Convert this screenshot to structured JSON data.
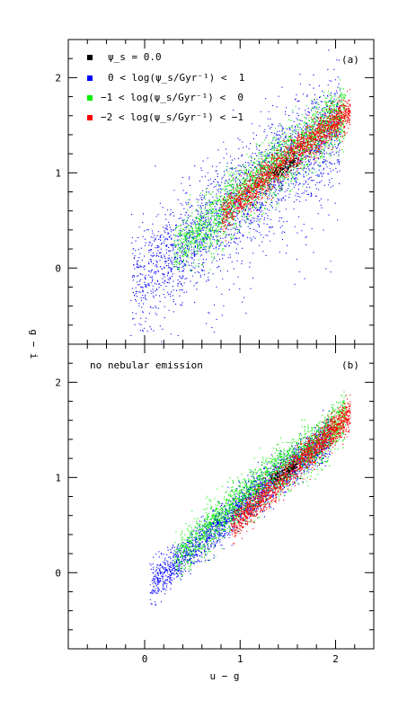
{
  "chart_data": {
    "type": "scatter",
    "xlabel": "u − g",
    "ylabel": "g − i",
    "xlim": [
      -0.8,
      2.4
    ],
    "x_ticks": [
      0,
      1,
      2
    ],
    "y_ticks": [
      0,
      1,
      2
    ],
    "panels": [
      {
        "id": "a",
        "label": "(a)",
        "annotation": "",
        "ylim": [
          -0.8,
          2.4
        ],
        "legend": [
          {
            "symbol_color": "#000000",
            "text": "ψ_s = 0.0"
          },
          {
            "symbol_color": "#0000ff",
            "text": "0 < log(ψ_s/Gyr⁻¹) <  1"
          },
          {
            "symbol_color": "#00ee00",
            "text": "−1 < log(ψ_s/Gyr⁻¹) <  0"
          },
          {
            "symbol_color": "#ff0000",
            "text": "−2 < log(ψ_s/Gyr⁻¹) < −1"
          }
        ],
        "series": [
          {
            "color": "#0000ff",
            "center": [
              [
                -0.1,
                -0.1
              ],
              [
                0.5,
                0.35
              ],
              [
                1.0,
                0.75
              ],
              [
                1.5,
                1.15
              ],
              [
                2.0,
                1.5
              ]
            ],
            "spread": 0.26,
            "x_range": [
              -0.15,
              2.05
            ],
            "count": 2600,
            "tail": true
          },
          {
            "color": "#00ee00",
            "center": [
              [
                0.2,
                0.1
              ],
              [
                0.7,
                0.5
              ],
              [
                1.2,
                0.95
              ],
              [
                1.7,
                1.35
              ],
              [
                2.1,
                1.65
              ]
            ],
            "spread": 0.15,
            "x_range": [
              0.3,
              2.1
            ],
            "count": 2400
          },
          {
            "color": "#ff0000",
            "center": [
              [
                0.7,
                0.45
              ],
              [
                1.2,
                0.9
              ],
              [
                1.6,
                1.25
              ],
              [
                2.1,
                1.62
              ]
            ],
            "spread": 0.09,
            "x_range": [
              0.8,
              2.15
            ],
            "count": 1800
          },
          {
            "color": "#000000",
            "center": [
              [
                1.35,
                1.0
              ],
              [
                1.6,
                1.15
              ]
            ],
            "spread": 0.03,
            "x_range": [
              1.3,
              1.6
            ],
            "count": 60
          }
        ]
      },
      {
        "id": "b",
        "label": "(b)",
        "annotation": "no nebular emission",
        "ylim": [
          -0.8,
          2.4
        ],
        "legend": [],
        "series": [
          {
            "color": "#0000ff",
            "center": [
              [
                0.0,
                -0.15
              ],
              [
                0.5,
                0.25
              ],
              [
                1.0,
                0.7
              ],
              [
                1.5,
                1.1
              ],
              [
                2.0,
                1.5
              ]
            ],
            "spread": 0.1,
            "x_range": [
              0.05,
              1.95
            ],
            "count": 2400
          },
          {
            "color": "#00ee00",
            "center": [
              [
                0.3,
                0.15
              ],
              [
                0.8,
                0.6
              ],
              [
                1.3,
                1.0
              ],
              [
                1.8,
                1.35
              ],
              [
                2.1,
                1.65
              ]
            ],
            "spread": 0.12,
            "x_range": [
              0.3,
              2.1
            ],
            "count": 2300
          },
          {
            "color": "#ff0000",
            "center": [
              [
                0.8,
                0.4
              ],
              [
                1.3,
                0.85
              ],
              [
                1.7,
                1.25
              ],
              [
                2.1,
                1.62
              ]
            ],
            "spread": 0.08,
            "x_range": [
              0.9,
              2.15
            ],
            "count": 1700
          },
          {
            "color": "#000000",
            "center": [
              [
                1.35,
                1.0
              ],
              [
                1.6,
                1.15
              ]
            ],
            "spread": 0.03,
            "x_range": [
              1.3,
              1.6
            ],
            "count": 60
          }
        ]
      }
    ]
  }
}
